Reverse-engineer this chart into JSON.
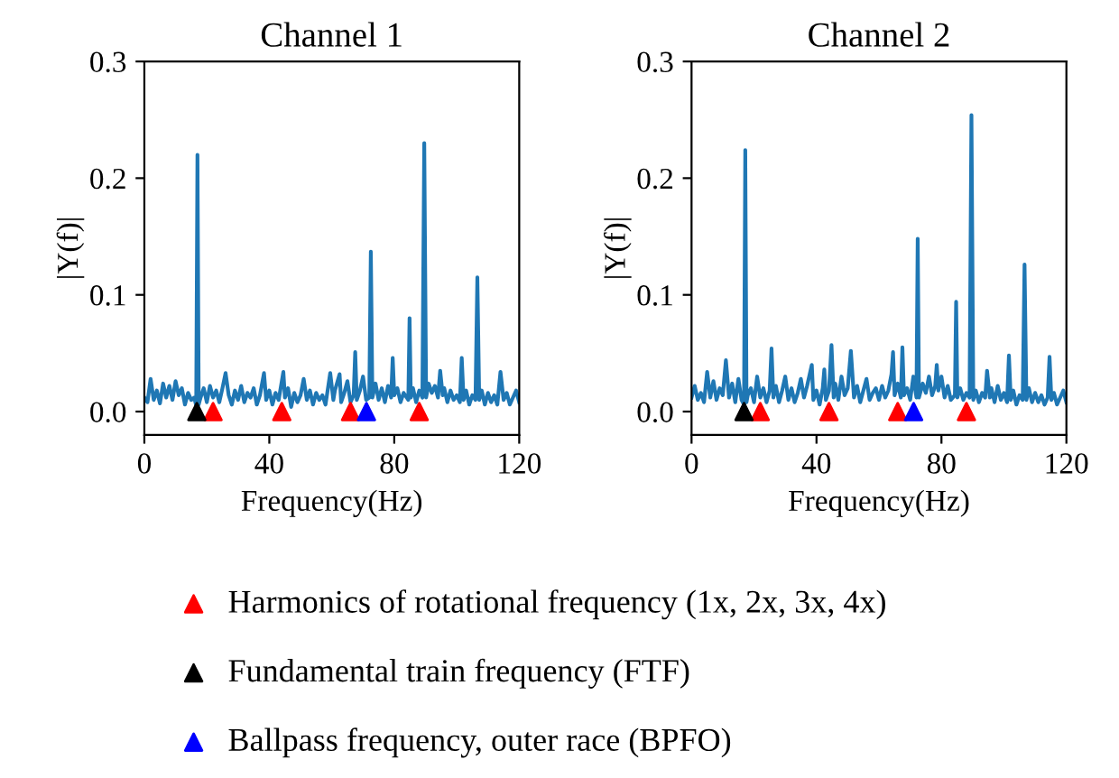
{
  "chart_data": [
    {
      "type": "line",
      "title": "Channel 1",
      "xlabel": "Frequency(Hz)",
      "ylabel": "|Y(f)|",
      "xlim": [
        0,
        120
      ],
      "ylim": [
        -0.02,
        0.3
      ],
      "xticks": [
        0,
        40,
        80,
        120
      ],
      "yticks": [
        {
          "value": 0,
          "label": "0.0"
        },
        {
          "value": 0.1,
          "label": "0.1"
        },
        {
          "value": 0.2,
          "label": "0.2"
        },
        {
          "value": 0.3,
          "label": "0.3"
        }
      ],
      "grid": false,
      "legend": "bottom",
      "series": [
        {
          "color": "#1f77b4",
          "x": [
            0,
            1,
            2,
            3,
            4,
            5,
            6,
            7,
            8,
            9,
            10,
            11,
            12,
            13,
            14,
            15,
            16,
            16.6,
            17,
            17.4,
            18,
            19,
            20,
            21,
            22,
            23,
            24,
            25,
            26,
            27,
            28,
            29,
            30,
            31,
            32,
            33,
            34,
            35,
            36,
            37,
            38.3,
            39,
            40,
            41,
            42,
            43,
            44.5,
            45,
            46,
            47,
            48,
            49,
            50,
            51,
            52,
            53,
            54,
            55,
            56,
            57,
            58,
            59.5,
            60.5,
            61,
            62.5,
            63,
            64,
            65,
            66,
            67,
            67.5,
            68,
            69,
            70,
            71,
            72,
            72.5,
            73,
            74,
            75,
            76,
            77,
            78,
            79,
            79.5,
            80,
            81,
            82,
            83,
            84.5,
            84.9,
            85.3,
            86,
            87,
            88,
            89,
            89.6,
            90.2,
            91,
            92,
            93,
            94,
            94.7,
            95.5,
            96,
            97,
            98,
            99,
            100,
            101,
            101.6,
            102.2,
            103,
            104,
            105,
            106,
            106.6,
            107.2,
            108,
            109,
            110,
            111,
            112,
            113,
            114,
            115,
            116,
            117,
            118,
            119,
            120
          ],
          "values": [
            0.012,
            0.008,
            0.028,
            0.01,
            0.018,
            0.007,
            0.024,
            0.012,
            0.022,
            0.01,
            0.026,
            0.014,
            0.02,
            0.006,
            0.016,
            0.01,
            0.012,
            0.005,
            0.22,
            0.006,
            0.012,
            0.02,
            0.008,
            0.022,
            0.012,
            0.018,
            0.008,
            0.02,
            0.033,
            0.014,
            0.006,
            0.018,
            0.01,
            0.022,
            0.008,
            0.016,
            0.012,
            0.02,
            0.006,
            0.014,
            0.033,
            0.01,
            0.018,
            0.006,
            0.016,
            0.01,
            0.034,
            0.012,
            0.02,
            0.004,
            0.016,
            0.008,
            0.014,
            0.028,
            0.01,
            0.018,
            0.006,
            0.016,
            0.01,
            0.014,
            0.006,
            0.033,
            0.01,
            0.018,
            0.032,
            0.008,
            0.016,
            0.026,
            0.008,
            0.014,
            0.051,
            0.01,
            0.018,
            0.03,
            0.01,
            0.012,
            0.137,
            0.012,
            0.024,
            0.01,
            0.02,
            0.008,
            0.022,
            0.012,
            0.046,
            0.014,
            0.02,
            0.008,
            0.016,
            0.01,
            0.08,
            0.012,
            0.02,
            0.008,
            0.018,
            0.012,
            0.23,
            0.012,
            0.024,
            0.016,
            0.022,
            0.012,
            0.035,
            0.014,
            0.02,
            0.008,
            0.018,
            0.01,
            0.014,
            0.008,
            0.046,
            0.01,
            0.018,
            0.006,
            0.014,
            0.01,
            0.115,
            0.01,
            0.018,
            0.006,
            0.016,
            0.008,
            0.014,
            0.006,
            0.034,
            0.01,
            0.016,
            0.006,
            0.012,
            0.018,
            0.008
          ]
        },
        {
          "type": "scatter",
          "marker": "triangle",
          "name": "Harmonics of rotational frequency (1x, 2x, 3x, 4x)",
          "color": "#ff0000",
          "x": [
            22,
            44,
            66,
            88
          ],
          "values": [
            0,
            0,
            0,
            0
          ]
        },
        {
          "type": "scatter",
          "marker": "triangle",
          "name": "Fundamental train frequency (FTF)",
          "color": "#000000",
          "x": [
            16.8
          ],
          "values": [
            0
          ]
        },
        {
          "type": "scatter",
          "marker": "triangle",
          "name": "Ballpass frequency, outer race (BPFO)",
          "color": "#0000ff",
          "x": [
            71.1
          ],
          "values": [
            0
          ]
        }
      ]
    },
    {
      "type": "line",
      "title": "Channel 2",
      "xlabel": "Frequency(Hz)",
      "ylabel": "|Y(f)|",
      "xlim": [
        0,
        120
      ],
      "ylim": [
        -0.02,
        0.3
      ],
      "xticks": [
        0,
        40,
        80,
        120
      ],
      "yticks": [
        {
          "value": 0,
          "label": "0.0"
        },
        {
          "value": 0.1,
          "label": "0.1"
        },
        {
          "value": 0.2,
          "label": "0.2"
        },
        {
          "value": 0.3,
          "label": "0.3"
        }
      ],
      "grid": false,
      "series": [
        {
          "color": "#1f77b4",
          "x": [
            0,
            1,
            2,
            3,
            4,
            5,
            6,
            7,
            8,
            9,
            10,
            11,
            12,
            13,
            14,
            15,
            16,
            16.8,
            17.2,
            17.6,
            18,
            19,
            20,
            21,
            22,
            23,
            24,
            25,
            25.6,
            26.2,
            27,
            28,
            29,
            30,
            31,
            32,
            33,
            34,
            35,
            36,
            37,
            38.5,
            39,
            40,
            41,
            42,
            42.5,
            43,
            44,
            44.8,
            45.5,
            46,
            47,
            48,
            49,
            50,
            51,
            52,
            53,
            54,
            55,
            56,
            57,
            58,
            59,
            60,
            61,
            62,
            63,
            64,
            64.5,
            65,
            66,
            67,
            67.5,
            68,
            69,
            70,
            71,
            72,
            72.4,
            72.8,
            74,
            75,
            76,
            77,
            78,
            78.5,
            79,
            80,
            81,
            82,
            83,
            84.3,
            84.7,
            85.1,
            86,
            87,
            88,
            89,
            89.6,
            90.2,
            91,
            92,
            93,
            94,
            94.6,
            95.5,
            96,
            97,
            98,
            99,
            100,
            101,
            101.6,
            102.2,
            103,
            104,
            105,
            106,
            106.6,
            107.2,
            108,
            109,
            110,
            111,
            112,
            113,
            114,
            114.6,
            115.2,
            116,
            117,
            118,
            119,
            120
          ],
          "values": [
            0.012,
            0.022,
            0.01,
            0.016,
            0.008,
            0.034,
            0.012,
            0.026,
            0.01,
            0.02,
            0.014,
            0.044,
            0.012,
            0.024,
            0.008,
            0.028,
            0.01,
            0.006,
            0.224,
            0.008,
            0.014,
            0.02,
            0.008,
            0.03,
            0.012,
            0.02,
            0.008,
            0.018,
            0.054,
            0.012,
            0.022,
            0.008,
            0.018,
            0.03,
            0.01,
            0.02,
            0.008,
            0.016,
            0.028,
            0.012,
            0.022,
            0.04,
            0.01,
            0.018,
            0.006,
            0.02,
            0.036,
            0.01,
            0.018,
            0.057,
            0.012,
            0.024,
            0.01,
            0.03,
            0.014,
            0.02,
            0.052,
            0.012,
            0.022,
            0.008,
            0.018,
            0.028,
            0.01,
            0.016,
            0.02,
            0.01,
            0.022,
            0.012,
            0.018,
            0.032,
            0.051,
            0.014,
            0.024,
            0.012,
            0.055,
            0.014,
            0.02,
            0.01,
            0.03,
            0.012,
            0.148,
            0.012,
            0.024,
            0.016,
            0.03,
            0.014,
            0.022,
            0.04,
            0.018,
            0.03,
            0.012,
            0.022,
            0.01,
            0.014,
            0.094,
            0.012,
            0.02,
            0.01,
            0.016,
            0.012,
            0.254,
            0.01,
            0.018,
            0.008,
            0.016,
            0.012,
            0.035,
            0.012,
            0.02,
            0.008,
            0.022,
            0.01,
            0.016,
            0.008,
            0.048,
            0.01,
            0.018,
            0.006,
            0.014,
            0.01,
            0.126,
            0.01,
            0.02,
            0.008,
            0.016,
            0.008,
            0.014,
            0.006,
            0.012,
            0.047,
            0.01,
            0.016,
            0.006,
            0.012,
            0.018,
            0.008
          ]
        },
        {
          "type": "scatter",
          "marker": "triangle",
          "color": "#ff0000",
          "x": [
            22,
            44,
            66,
            88
          ],
          "values": [
            0,
            0,
            0,
            0
          ]
        },
        {
          "type": "scatter",
          "marker": "triangle",
          "color": "#000000",
          "x": [
            16.8
          ],
          "values": [
            0
          ]
        },
        {
          "type": "scatter",
          "marker": "triangle",
          "color": "#0000ff",
          "x": [
            71.1
          ],
          "values": [
            0
          ]
        }
      ]
    }
  ]
}
